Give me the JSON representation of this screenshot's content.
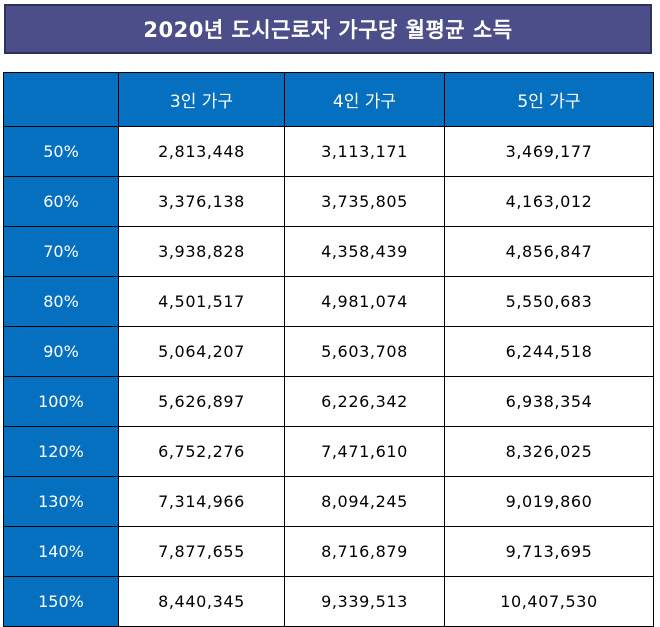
{
  "title": "2020년 도시근로자 가구당 월평균 소득",
  "colors": {
    "title_background": "#4b4e88",
    "header_background": "#0570c0",
    "header_text": "#ffffff",
    "cell_background": "#ffffff"
  },
  "table": {
    "corner_label": "",
    "columns": [
      "3인 가구",
      "4인 가구",
      "5인 가구"
    ],
    "rows": [
      {
        "label": "50%",
        "values": [
          "2,813,448",
          "3,113,171",
          "3,469,177"
        ]
      },
      {
        "label": "60%",
        "values": [
          "3,376,138",
          "3,735,805",
          "4,163,012"
        ]
      },
      {
        "label": "70%",
        "values": [
          "3,938,828",
          "4,358,439",
          "4,856,847"
        ]
      },
      {
        "label": "80%",
        "values": [
          "4,501,517",
          "4,981,074",
          "5,550,683"
        ]
      },
      {
        "label": "90%",
        "values": [
          "5,064,207",
          "5,603,708",
          "6,244,518"
        ]
      },
      {
        "label": "100%",
        "values": [
          "5,626,897",
          "6,226,342",
          "6,938,354"
        ]
      },
      {
        "label": "120%",
        "values": [
          "6,752,276",
          "7,471,610",
          "8,326,025"
        ]
      },
      {
        "label": "130%",
        "values": [
          "7,314,966",
          "8,094,245",
          "9,019,860"
        ]
      },
      {
        "label": "140%",
        "values": [
          "7,877,655",
          "8,716,879",
          "9,713,695"
        ]
      },
      {
        "label": "150%",
        "values": [
          "8,440,345",
          "9,339,513",
          "10,407,530"
        ]
      }
    ]
  }
}
